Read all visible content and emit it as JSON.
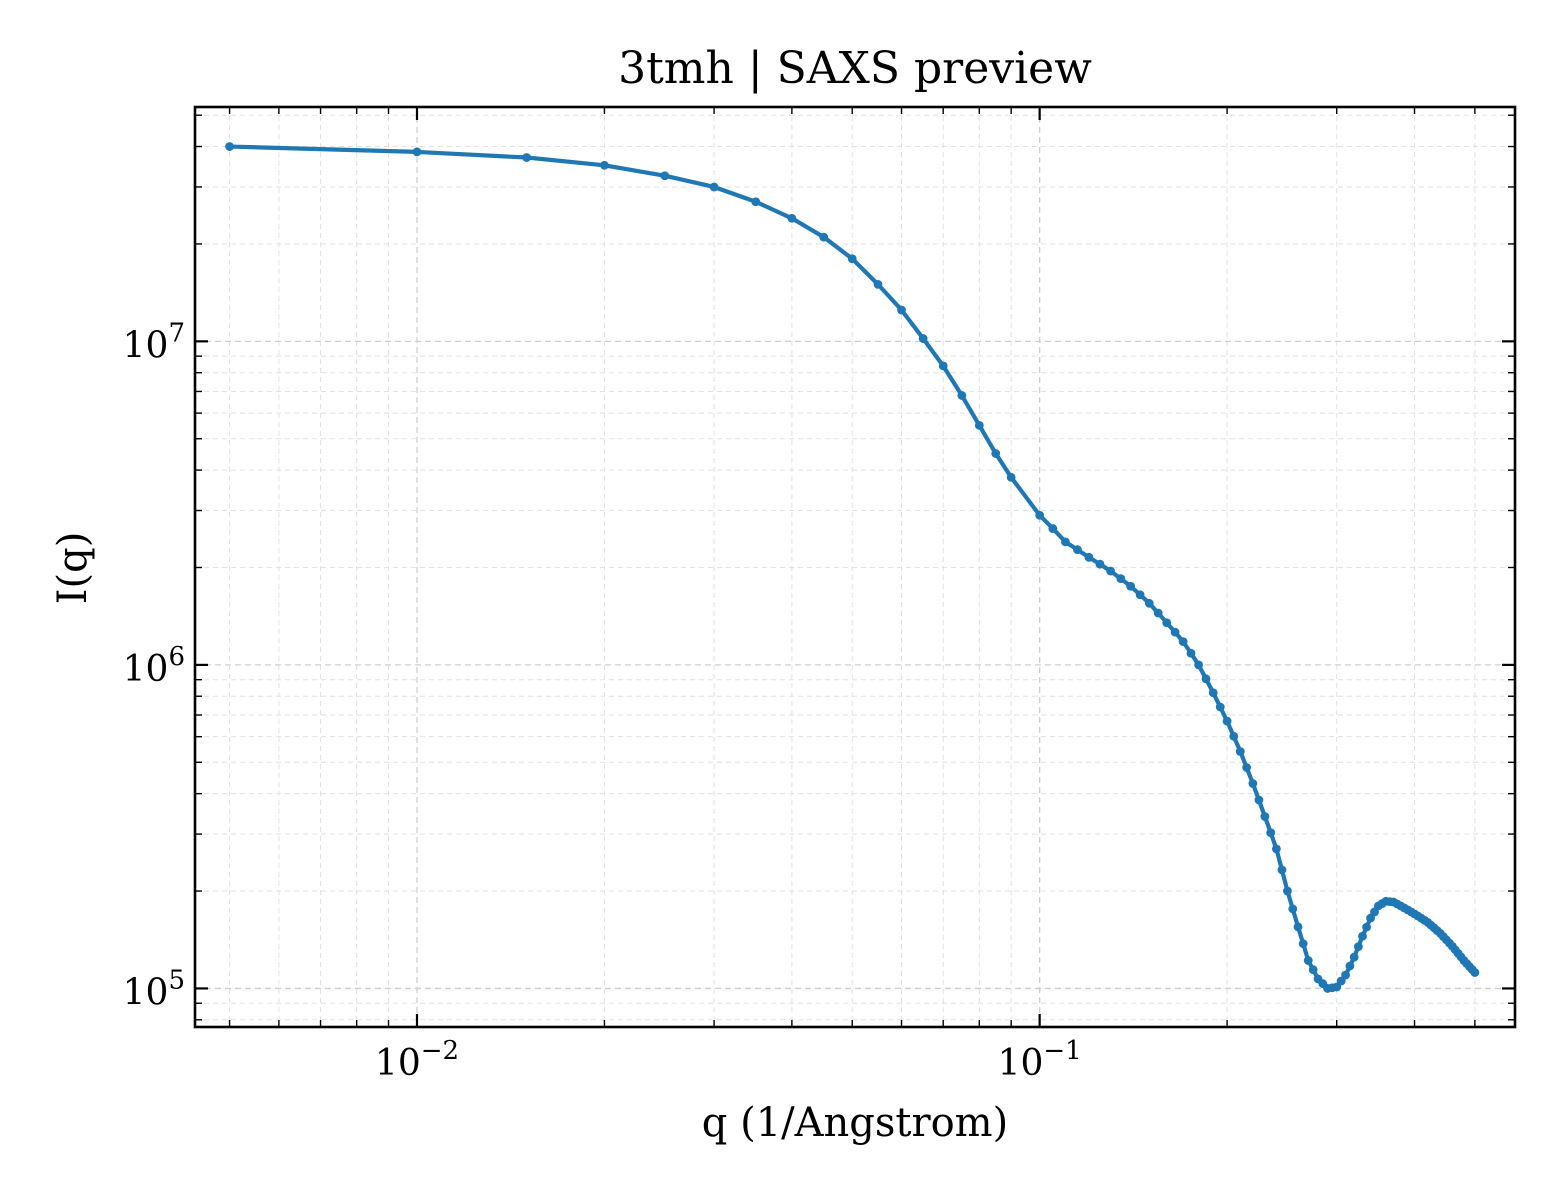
{
  "chart_data": {
    "type": "line",
    "title": "3tmh | SAXS preview",
    "xlabel": "q (1/Angstrom)",
    "ylabel": "I(q)",
    "xscale": "log",
    "yscale": "log",
    "xlim": [
      0.0044,
      0.58
    ],
    "ylim": [
      76000,
      53000000
    ],
    "grid": true,
    "legend": "none",
    "line_color": "#1f77b4",
    "marker": "dot",
    "x_ticks": [
      {
        "base": "10",
        "exp": "−2",
        "value": 0.01
      },
      {
        "base": "10",
        "exp": "−1",
        "value": 0.1
      }
    ],
    "y_ticks": [
      {
        "base": "10",
        "exp": "5",
        "value": 100000
      },
      {
        "base": "10",
        "exp": "6",
        "value": 1000000
      },
      {
        "base": "10",
        "exp": "7",
        "value": 10000000
      }
    ],
    "anchors": [
      [
        0.005,
        40000000
      ],
      [
        0.01,
        38500000
      ],
      [
        0.015,
        37000000
      ],
      [
        0.02,
        35000000
      ],
      [
        0.025,
        32500000
      ],
      [
        0.03,
        30000000
      ],
      [
        0.035,
        27000000
      ],
      [
        0.04,
        24000000
      ],
      [
        0.045,
        21000000
      ],
      [
        0.05,
        18000000
      ],
      [
        0.055,
        15000000
      ],
      [
        0.06,
        12500000
      ],
      [
        0.065,
        10200000
      ],
      [
        0.07,
        8400000
      ],
      [
        0.075,
        6800000
      ],
      [
        0.08,
        5500000
      ],
      [
        0.085,
        4500000
      ],
      [
        0.09,
        3800000
      ],
      [
        0.1,
        2900000
      ],
      [
        0.11,
        2400000
      ],
      [
        0.12,
        2150000
      ],
      [
        0.13,
        1950000
      ],
      [
        0.14,
        1750000
      ],
      [
        0.15,
        1550000
      ],
      [
        0.16,
        1350000
      ],
      [
        0.17,
        1180000
      ],
      [
        0.18,
        1000000
      ],
      [
        0.19,
        820000
      ],
      [
        0.2,
        670000
      ],
      [
        0.21,
        540000
      ],
      [
        0.22,
        430000
      ],
      [
        0.23,
        340000
      ],
      [
        0.24,
        270000
      ],
      [
        0.25,
        200000
      ],
      [
        0.26,
        155000
      ],
      [
        0.27,
        122000
      ],
      [
        0.28,
        107000
      ],
      [
        0.29,
        100000
      ],
      [
        0.3,
        101000
      ],
      [
        0.31,
        110000
      ],
      [
        0.32,
        125000
      ],
      [
        0.33,
        145000
      ],
      [
        0.34,
        165000
      ],
      [
        0.35,
        180000
      ],
      [
        0.36,
        186000
      ],
      [
        0.37,
        185000
      ],
      [
        0.38,
        180000
      ],
      [
        0.4,
        170000
      ],
      [
        0.42,
        160000
      ],
      [
        0.44,
        148000
      ],
      [
        0.46,
        135000
      ],
      [
        0.48,
        122000
      ],
      [
        0.5,
        112000
      ]
    ]
  }
}
